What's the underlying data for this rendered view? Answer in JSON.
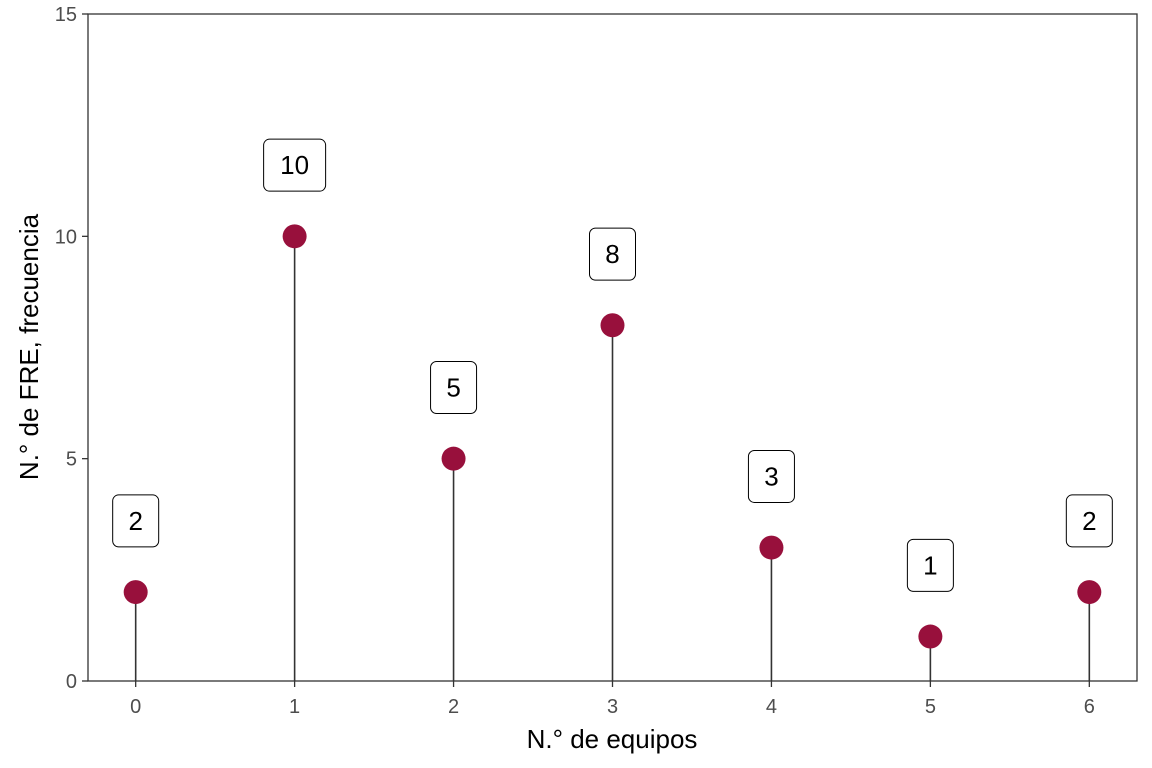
{
  "chart_data": {
    "type": "lollipop",
    "title": "",
    "xlabel": "N.° de equipos",
    "ylabel": "N.° de FRE, frecuencia",
    "x": [
      0,
      1,
      2,
      3,
      4,
      5,
      6
    ],
    "values": [
      2,
      10,
      5,
      8,
      3,
      1,
      2
    ],
    "data_labels": [
      "2",
      "10",
      "5",
      "8",
      "3",
      "1",
      "2"
    ],
    "xlim": [
      -0.3,
      6.3
    ],
    "ylim": [
      0,
      15
    ],
    "xticks": [
      0,
      1,
      2,
      3,
      4,
      5,
      6
    ],
    "xtick_labels": [
      "0",
      "1",
      "2",
      "3",
      "4",
      "5",
      "6"
    ],
    "yticks": [
      0,
      5,
      10,
      15
    ],
    "ytick_labels": [
      "0",
      "5",
      "10",
      "15"
    ],
    "grid": false,
    "point_color": "#98103c",
    "stem_color": "#333333"
  }
}
